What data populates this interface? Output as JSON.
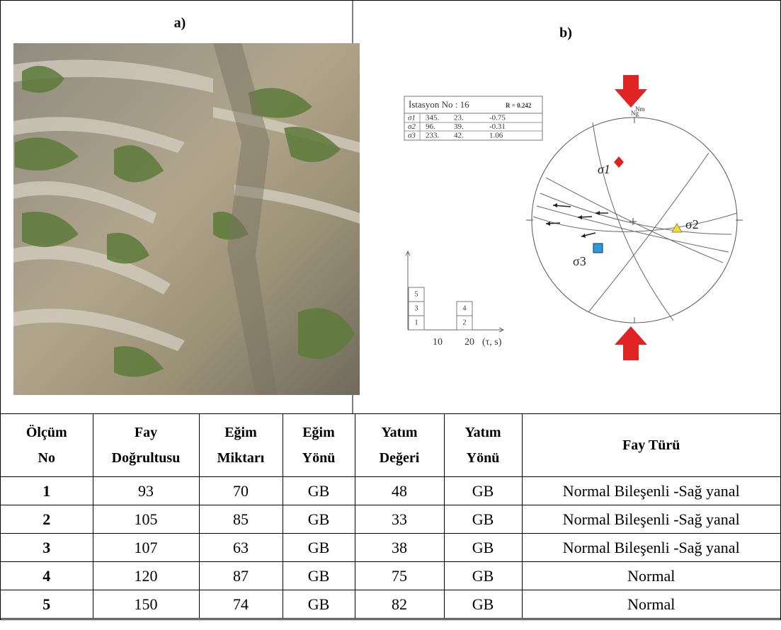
{
  "panel_a": {
    "label": "a)"
  },
  "panel_b": {
    "label": "b)",
    "station": {
      "title": "İstasyon No : 16",
      "ratio": "R = 0.242",
      "rows": [
        [
          "σ1",
          "345.",
          "23.",
          "-0.75"
        ],
        [
          "σ2",
          "96.",
          "39.",
          "-0.31"
        ],
        [
          "σ3",
          "233.",
          "42.",
          "1.06"
        ]
      ]
    },
    "north_labels": [
      "Nm",
      "Ng"
    ],
    "stress_labels": [
      "σ1",
      "σ2",
      "σ3"
    ],
    "histogram": {
      "left_column": [
        "5",
        "3",
        "1"
      ],
      "right_column": [
        "4",
        "2"
      ],
      "axis_labels": [
        "10",
        "20",
        "(τ, s)"
      ]
    }
  },
  "table": {
    "header": [
      [
        "Ölçüm",
        "No"
      ],
      [
        "Fay",
        "Doğrultusu"
      ],
      [
        "Eğim",
        "Miktarı"
      ],
      [
        "Eğim",
        "Yönü"
      ],
      [
        "Yatım",
        "Değeri"
      ],
      [
        "Yatım",
        "Yönü"
      ],
      [
        "Fay Türü"
      ]
    ],
    "rows": [
      [
        1,
        93,
        70,
        "GB",
        48,
        "GB",
        "Normal Bileşenli -Sağ yanal"
      ],
      [
        2,
        105,
        85,
        "GB",
        33,
        "GB",
        "Normal Bileşenli -Sağ yanal"
      ],
      [
        3,
        107,
        63,
        "GB",
        38,
        "GB",
        "Normal Bileşenli -Sağ yanal"
      ],
      [
        4,
        120,
        87,
        "GB",
        75,
        "GB",
        "Normal"
      ],
      [
        5,
        150,
        74,
        "GB",
        82,
        "GB",
        "Normal"
      ]
    ]
  }
}
